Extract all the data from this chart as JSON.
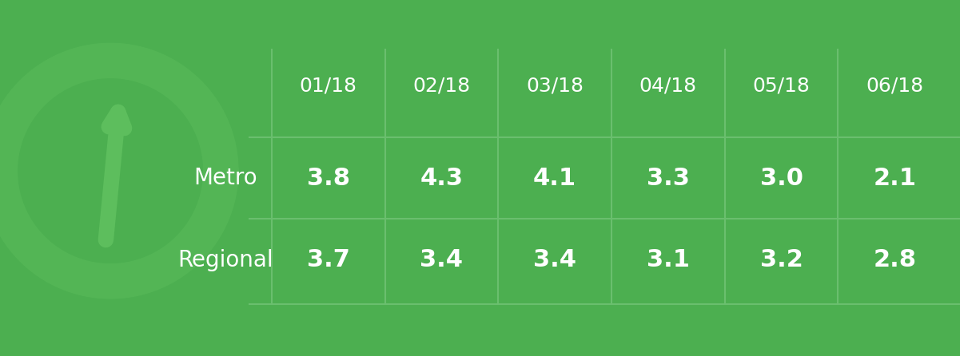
{
  "background_color": "#4caf50",
  "text_color": "#ffffff",
  "line_color": "#6abf6e",
  "columns": [
    "01/18",
    "02/18",
    "03/18",
    "04/18",
    "05/18",
    "06/18"
  ],
  "rows": [
    "Metro",
    "Regional"
  ],
  "metro_values": [
    "3.8",
    "4.3",
    "4.1",
    "3.3",
    "3.0",
    "2.1"
  ],
  "regional_values": [
    "3.7",
    "3.4",
    "3.4",
    "3.1",
    "3.2",
    "2.8"
  ],
  "header_fontsize": 18,
  "data_fontsize": 22,
  "row_label_fontsize": 20,
  "fig_width": 12.01,
  "fig_height": 4.46,
  "dpi": 100
}
